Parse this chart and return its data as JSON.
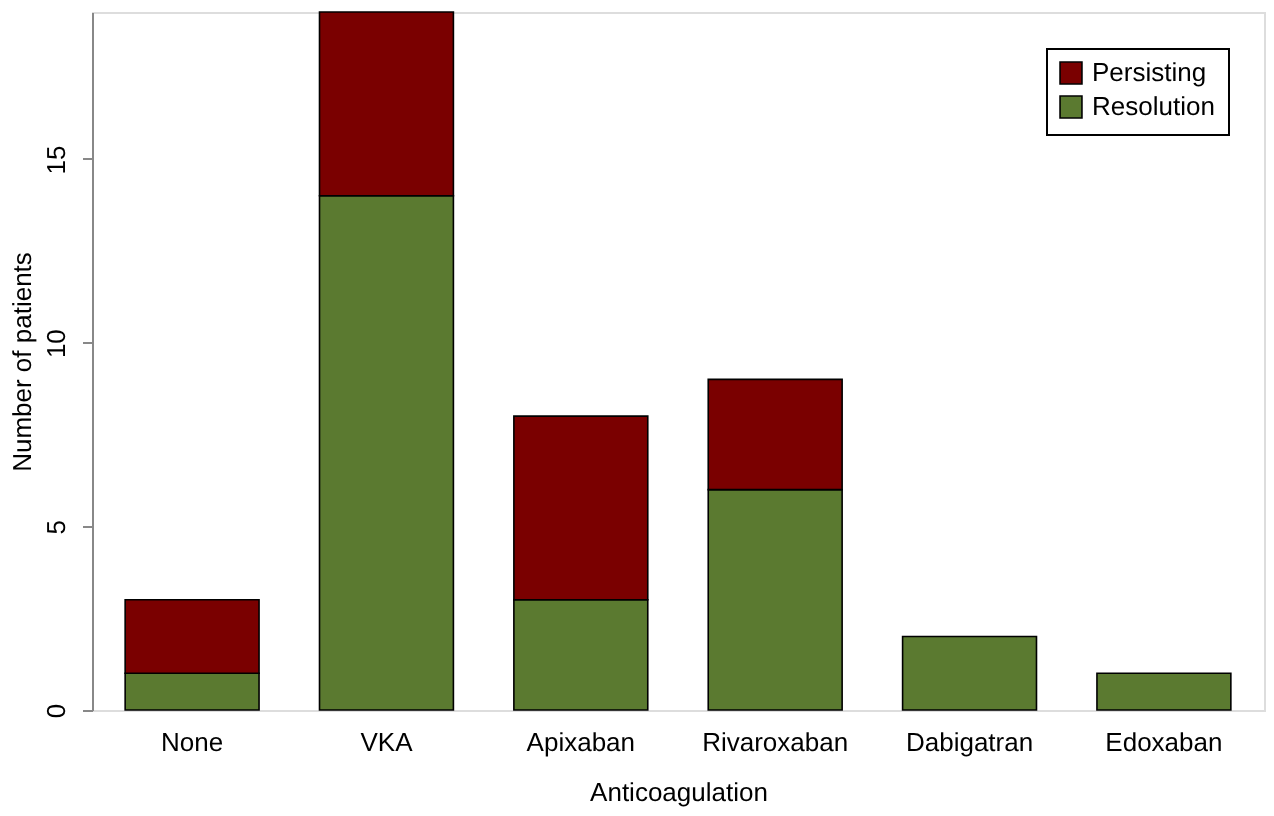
{
  "chart_data": {
    "type": "bar",
    "stacked": true,
    "xlabel": "Anticoagulation",
    "ylabel": "Number of patients",
    "categories": [
      "None",
      "VKA",
      "Apixaban",
      "Rivaroxaban",
      "Dabigatran",
      "Edoxaban"
    ],
    "series": [
      {
        "name": "Resolution",
        "color": "#5b7a30",
        "values": [
          1,
          14,
          3,
          6,
          2,
          1
        ]
      },
      {
        "name": "Persisting",
        "color": "#7a0000",
        "values": [
          2,
          5,
          5,
          3,
          null,
          null
        ]
      }
    ],
    "ylim": [
      0,
      19
    ],
    "yticks": [
      0,
      5,
      10,
      15
    ],
    "grid": false,
    "legend": "top right"
  }
}
